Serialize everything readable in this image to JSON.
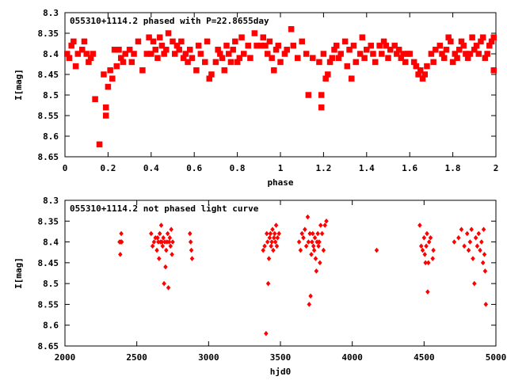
{
  "chart_data": [
    {
      "type": "scatter",
      "title": "055310+1114.2 phased with P=22.8655day",
      "xlabel": "phase",
      "ylabel": "I[mag]",
      "xlim": [
        0,
        2
      ],
      "ylim": [
        8.3,
        8.65
      ],
      "y_inverted": true,
      "grid": false,
      "marker": "cross",
      "color": "#ff0000",
      "x_ticks": [
        0,
        0.2,
        0.4,
        0.6,
        0.8,
        1,
        1.2,
        1.4,
        1.6,
        1.8,
        2
      ],
      "x_tick_labels": [
        "0",
        "0.2",
        "0.4",
        "0.6",
        "0.8",
        "1",
        "1.2",
        "1.4",
        "1.6",
        "1.8",
        "2"
      ],
      "y_ticks": [
        8.3,
        8.35,
        8.4,
        8.45,
        8.5,
        8.55,
        8.6,
        8.65
      ],
      "y_tick_labels": [
        "8.3",
        "8.35",
        "8.4",
        "8.45",
        "8.5",
        "8.55",
        "8.6",
        "8.65"
      ],
      "points": [
        [
          0.01,
          8.4
        ],
        [
          0.02,
          8.41
        ],
        [
          0.03,
          8.38
        ],
        [
          0.04,
          8.37
        ],
        [
          0.05,
          8.43
        ],
        [
          0.06,
          8.4
        ],
        [
          0.08,
          8.39
        ],
        [
          0.09,
          8.37
        ],
        [
          0.1,
          8.4
        ],
        [
          0.11,
          8.42
        ],
        [
          0.12,
          8.41
        ],
        [
          0.13,
          8.4
        ],
        [
          0.14,
          8.51
        ],
        [
          0.16,
          8.62
        ],
        [
          0.18,
          8.45
        ],
        [
          0.19,
          8.53
        ],
        [
          0.19,
          8.55
        ],
        [
          0.2,
          8.48
        ],
        [
          0.21,
          8.44
        ],
        [
          0.22,
          8.46
        ],
        [
          0.23,
          8.39
        ],
        [
          0.24,
          8.43
        ],
        [
          0.25,
          8.39
        ],
        [
          0.26,
          8.41
        ],
        [
          0.27,
          8.42
        ],
        [
          0.28,
          8.4
        ],
        [
          0.3,
          8.39
        ],
        [
          0.31,
          8.42
        ],
        [
          0.32,
          8.4
        ],
        [
          0.34,
          8.37
        ],
        [
          0.36,
          8.44
        ],
        [
          0.38,
          8.4
        ],
        [
          0.39,
          8.36
        ],
        [
          0.4,
          8.4
        ],
        [
          0.41,
          8.37
        ],
        [
          0.42,
          8.39
        ],
        [
          0.43,
          8.41
        ],
        [
          0.44,
          8.36
        ],
        [
          0.45,
          8.38
        ],
        [
          0.46,
          8.4
        ],
        [
          0.47,
          8.39
        ],
        [
          0.48,
          8.35
        ],
        [
          0.5,
          8.37
        ],
        [
          0.51,
          8.4
        ],
        [
          0.52,
          8.38
        ],
        [
          0.53,
          8.39
        ],
        [
          0.54,
          8.37
        ],
        [
          0.55,
          8.41
        ],
        [
          0.56,
          8.4
        ],
        [
          0.57,
          8.42
        ],
        [
          0.58,
          8.39
        ],
        [
          0.59,
          8.41
        ],
        [
          0.61,
          8.44
        ],
        [
          0.62,
          8.38
        ],
        [
          0.63,
          8.4
        ],
        [
          0.65,
          8.42
        ],
        [
          0.66,
          8.37
        ],
        [
          0.67,
          8.46
        ],
        [
          0.68,
          8.45
        ],
        [
          0.7,
          8.42
        ],
        [
          0.71,
          8.39
        ],
        [
          0.72,
          8.4
        ],
        [
          0.73,
          8.41
        ],
        [
          0.74,
          8.44
        ],
        [
          0.75,
          8.38
        ],
        [
          0.76,
          8.4
        ],
        [
          0.77,
          8.42
        ],
        [
          0.78,
          8.39
        ],
        [
          0.79,
          8.37
        ],
        [
          0.8,
          8.42
        ],
        [
          0.81,
          8.41
        ],
        [
          0.82,
          8.36
        ],
        [
          0.83,
          8.4
        ],
        [
          0.85,
          8.38
        ],
        [
          0.86,
          8.41
        ],
        [
          0.88,
          8.35
        ],
        [
          0.89,
          8.38
        ],
        [
          0.91,
          8.38
        ],
        [
          0.92,
          8.36
        ],
        [
          0.93,
          8.38
        ],
        [
          0.94,
          8.4
        ],
        [
          0.95,
          8.37
        ],
        [
          0.96,
          8.41
        ],
        [
          0.97,
          8.44
        ],
        [
          0.98,
          8.39
        ],
        [
          0.99,
          8.38
        ],
        [
          1.0,
          8.42
        ],
        [
          1.02,
          8.4
        ],
        [
          1.03,
          8.39
        ],
        [
          1.05,
          8.34
        ],
        [
          1.06,
          8.38
        ],
        [
          1.08,
          8.41
        ],
        [
          1.1,
          8.37
        ],
        [
          1.12,
          8.4
        ],
        [
          1.13,
          8.5
        ],
        [
          1.15,
          8.41
        ],
        [
          1.18,
          8.42
        ],
        [
          1.19,
          8.5
        ],
        [
          1.19,
          8.53
        ],
        [
          1.2,
          8.4
        ],
        [
          1.21,
          8.46
        ],
        [
          1.22,
          8.45
        ],
        [
          1.23,
          8.42
        ],
        [
          1.24,
          8.41
        ],
        [
          1.25,
          8.39
        ],
        [
          1.26,
          8.38
        ],
        [
          1.27,
          8.41
        ],
        [
          1.28,
          8.4
        ],
        [
          1.3,
          8.37
        ],
        [
          1.31,
          8.43
        ],
        [
          1.32,
          8.39
        ],
        [
          1.33,
          8.46
        ],
        [
          1.34,
          8.38
        ],
        [
          1.35,
          8.42
        ],
        [
          1.37,
          8.4
        ],
        [
          1.38,
          8.36
        ],
        [
          1.39,
          8.41
        ],
        [
          1.4,
          8.39
        ],
        [
          1.42,
          8.38
        ],
        [
          1.43,
          8.4
        ],
        [
          1.44,
          8.42
        ],
        [
          1.46,
          8.38
        ],
        [
          1.47,
          8.4
        ],
        [
          1.48,
          8.37
        ],
        [
          1.49,
          8.38
        ],
        [
          1.5,
          8.41
        ],
        [
          1.51,
          8.39
        ],
        [
          1.53,
          8.38
        ],
        [
          1.54,
          8.4
        ],
        [
          1.55,
          8.39
        ],
        [
          1.56,
          8.41
        ],
        [
          1.57,
          8.4
        ],
        [
          1.58,
          8.42
        ],
        [
          1.59,
          8.4
        ],
        [
          1.6,
          8.4
        ],
        [
          1.62,
          8.42
        ],
        [
          1.63,
          8.43
        ],
        [
          1.64,
          8.45
        ],
        [
          1.65,
          8.44
        ],
        [
          1.66,
          8.46
        ],
        [
          1.67,
          8.45
        ],
        [
          1.68,
          8.43
        ],
        [
          1.7,
          8.4
        ],
        [
          1.71,
          8.42
        ],
        [
          1.72,
          8.39
        ],
        [
          1.74,
          8.38
        ],
        [
          1.75,
          8.4
        ],
        [
          1.76,
          8.41
        ],
        [
          1.77,
          8.39
        ],
        [
          1.78,
          8.36
        ],
        [
          1.79,
          8.37
        ],
        [
          1.8,
          8.42
        ],
        [
          1.81,
          8.4
        ],
        [
          1.82,
          8.41
        ],
        [
          1.83,
          8.39
        ],
        [
          1.84,
          8.37
        ],
        [
          1.85,
          8.38
        ],
        [
          1.86,
          8.4
        ],
        [
          1.87,
          8.41
        ],
        [
          1.88,
          8.4
        ],
        [
          1.89,
          8.36
        ],
        [
          1.9,
          8.39
        ],
        [
          1.91,
          8.38
        ],
        [
          1.92,
          8.4
        ],
        [
          1.93,
          8.37
        ],
        [
          1.94,
          8.36
        ],
        [
          1.95,
          8.41
        ],
        [
          1.96,
          8.4
        ],
        [
          1.97,
          8.38
        ],
        [
          1.98,
          8.37
        ],
        [
          1.99,
          8.44
        ],
        [
          1.99,
          8.36
        ]
      ]
    },
    {
      "type": "scatter",
      "title": "055310+1114.2 not phased light curve",
      "xlabel": "hjd0",
      "ylabel": "I[mag]",
      "xlim": [
        2000,
        5000
      ],
      "ylim": [
        8.3,
        8.65
      ],
      "y_inverted": true,
      "grid": false,
      "marker": "diamond",
      "color": "#ff0000",
      "x_ticks": [
        2000,
        2500,
        3000,
        3500,
        4000,
        4500,
        5000
      ],
      "x_tick_labels": [
        "2000",
        "2500",
        "3000",
        "3500",
        "4000",
        "4500",
        "5000"
      ],
      "y_ticks": [
        8.3,
        8.35,
        8.4,
        8.45,
        8.5,
        8.55,
        8.6,
        8.65
      ],
      "y_tick_labels": [
        "8.3",
        "8.35",
        "8.4",
        "8.45",
        "8.5",
        "8.55",
        "8.6",
        "8.65"
      ],
      "points": [
        [
          2380,
          8.4
        ],
        [
          2385,
          8.43
        ],
        [
          2388,
          8.4
        ],
        [
          2392,
          8.38
        ],
        [
          2395,
          8.4
        ],
        [
          2600,
          8.38
        ],
        [
          2610,
          8.41
        ],
        [
          2620,
          8.4
        ],
        [
          2630,
          8.39
        ],
        [
          2640,
          8.42
        ],
        [
          2645,
          8.39
        ],
        [
          2650,
          8.4
        ],
        [
          2655,
          8.44
        ],
        [
          2660,
          8.38
        ],
        [
          2665,
          8.4
        ],
        [
          2670,
          8.36
        ],
        [
          2675,
          8.4
        ],
        [
          2680,
          8.41
        ],
        [
          2685,
          8.39
        ],
        [
          2690,
          8.5
        ],
        [
          2695,
          8.4
        ],
        [
          2700,
          8.46
        ],
        [
          2705,
          8.42
        ],
        [
          2710,
          8.4
        ],
        [
          2715,
          8.38
        ],
        [
          2720,
          8.51
        ],
        [
          2725,
          8.4
        ],
        [
          2730,
          8.39
        ],
        [
          2735,
          8.41
        ],
        [
          2740,
          8.37
        ],
        [
          2745,
          8.43
        ],
        [
          2750,
          8.4
        ],
        [
          2870,
          8.38
        ],
        [
          2875,
          8.4
        ],
        [
          2880,
          8.42
        ],
        [
          2885,
          8.44
        ],
        [
          3380,
          8.42
        ],
        [
          3390,
          8.41
        ],
        [
          3400,
          8.62
        ],
        [
          3405,
          8.38
        ],
        [
          3410,
          8.4
        ],
        [
          3415,
          8.5
        ],
        [
          3420,
          8.44
        ],
        [
          3425,
          8.39
        ],
        [
          3430,
          8.38
        ],
        [
          3435,
          8.41
        ],
        [
          3440,
          8.4
        ],
        [
          3445,
          8.37
        ],
        [
          3450,
          8.42
        ],
        [
          3455,
          8.39
        ],
        [
          3460,
          8.38
        ],
        [
          3465,
          8.4
        ],
        [
          3470,
          8.36
        ],
        [
          3475,
          8.41
        ],
        [
          3480,
          8.39
        ],
        [
          3490,
          8.38
        ],
        [
          3630,
          8.4
        ],
        [
          3640,
          8.42
        ],
        [
          3650,
          8.38
        ],
        [
          3660,
          8.39
        ],
        [
          3670,
          8.37
        ],
        [
          3680,
          8.41
        ],
        [
          3690,
          8.34
        ],
        [
          3695,
          8.4
        ],
        [
          3700,
          8.55
        ],
        [
          3705,
          8.38
        ],
        [
          3710,
          8.53
        ],
        [
          3715,
          8.43
        ],
        [
          3720,
          8.4
        ],
        [
          3725,
          8.38
        ],
        [
          3730,
          8.41
        ],
        [
          3735,
          8.42
        ],
        [
          3740,
          8.39
        ],
        [
          3745,
          8.44
        ],
        [
          3750,
          8.47
        ],
        [
          3755,
          8.4
        ],
        [
          3760,
          8.38
        ],
        [
          3765,
          8.41
        ],
        [
          3770,
          8.4
        ],
        [
          3775,
          8.45
        ],
        [
          3780,
          8.36
        ],
        [
          3790,
          8.38
        ],
        [
          3800,
          8.42
        ],
        [
          3810,
          8.36
        ],
        [
          3820,
          8.35
        ],
        [
          4170,
          8.42
        ],
        [
          4470,
          8.36
        ],
        [
          4480,
          8.41
        ],
        [
          4490,
          8.42
        ],
        [
          4500,
          8.39
        ],
        [
          4505,
          8.43
        ],
        [
          4510,
          8.45
        ],
        [
          4515,
          8.41
        ],
        [
          4520,
          8.38
        ],
        [
          4525,
          8.52
        ],
        [
          4530,
          8.45
        ],
        [
          4535,
          8.4
        ],
        [
          4545,
          8.39
        ],
        [
          4560,
          8.44
        ],
        [
          4565,
          8.42
        ],
        [
          4710,
          8.4
        ],
        [
          4740,
          8.39
        ],
        [
          4760,
          8.37
        ],
        [
          4780,
          8.41
        ],
        [
          4800,
          8.38
        ],
        [
          4810,
          8.42
        ],
        [
          4820,
          8.4
        ],
        [
          4830,
          8.37
        ],
        [
          4840,
          8.44
        ],
        [
          4850,
          8.5
        ],
        [
          4860,
          8.39
        ],
        [
          4870,
          8.41
        ],
        [
          4880,
          8.38
        ],
        [
          4890,
          8.42
        ],
        [
          4900,
          8.4
        ],
        [
          4910,
          8.45
        ],
        [
          4915,
          8.37
        ],
        [
          4920,
          8.43
        ],
        [
          4925,
          8.47
        ],
        [
          4930,
          8.55
        ]
      ]
    }
  ]
}
